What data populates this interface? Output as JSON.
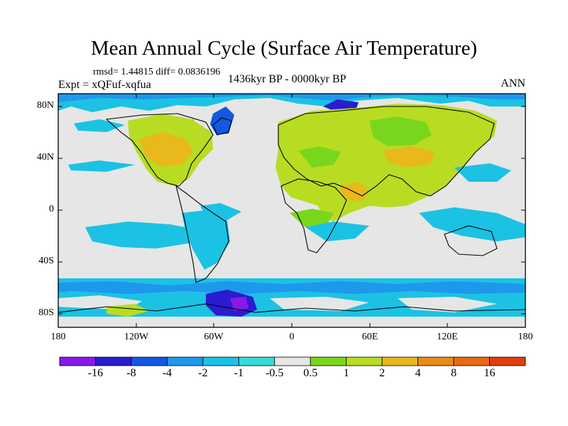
{
  "title": "Mean Annual Cycle (Surface Air Temperature)",
  "stats": "rmsd= 1.44815 diff= 0.0836196",
  "experiment": "Expt = xQFuf-xqfua",
  "period": "1436kyr BP - 0000kyr BP",
  "season": "ANN",
  "lat_labels": [
    "80N",
    "40N",
    "0",
    "40S",
    "80S"
  ],
  "lon_labels": [
    "180",
    "120W",
    "60W",
    "0",
    "60E",
    "120E",
    "180"
  ],
  "colorbar": {
    "labels": [
      "-16",
      "-8",
      "-4",
      "-2",
      "-1",
      "-0.5",
      "0.5",
      "1",
      "2",
      "4",
      "8",
      "16"
    ],
    "colors": [
      "#8a18e8",
      "#2a1ccf",
      "#1258e0",
      "#1e98ec",
      "#1bc2e4",
      "#36dcd4",
      "#e6e6e6",
      "#7ad61c",
      "#b8dc22",
      "#e8b81c",
      "#e88c16",
      "#e86a12",
      "#e03e0e"
    ]
  }
}
